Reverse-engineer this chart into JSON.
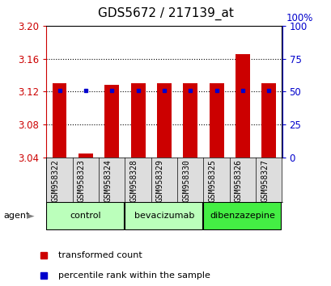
{
  "title": "GDS5672 / 217139_at",
  "samples": [
    "GSM958322",
    "GSM958323",
    "GSM958324",
    "GSM958328",
    "GSM958329",
    "GSM958330",
    "GSM958325",
    "GSM958326",
    "GSM958327"
  ],
  "transformed_count": [
    3.13,
    3.045,
    3.128,
    3.13,
    3.13,
    3.13,
    3.13,
    3.165,
    3.13
  ],
  "percentile_values": [
    3.121,
    3.121,
    3.121,
    3.121,
    3.121,
    3.121,
    3.121,
    3.121,
    3.121
  ],
  "groups": [
    {
      "label": "control",
      "start": 0,
      "end": 3,
      "color": "#bbffbb"
    },
    {
      "label": "bevacizumab",
      "start": 3,
      "end": 6,
      "color": "#bbffbb"
    },
    {
      "label": "dibenzazepine",
      "start": 6,
      "end": 9,
      "color": "#44ee44"
    }
  ],
  "ylim_left": [
    3.04,
    3.2
  ],
  "ylim_right": [
    0,
    100
  ],
  "yticks_left": [
    3.04,
    3.08,
    3.12,
    3.16,
    3.2
  ],
  "yticks_right": [
    0,
    25,
    50,
    75,
    100
  ],
  "bar_color": "#cc0000",
  "dot_color": "#0000cc",
  "bar_bottom": 3.04,
  "bg_color": "#ffffff",
  "title_fontsize": 11,
  "tick_fontsize": 8.5
}
